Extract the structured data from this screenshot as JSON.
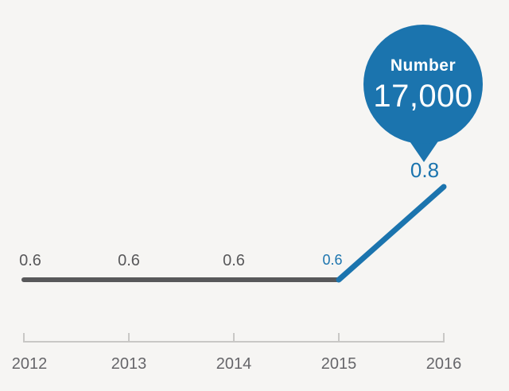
{
  "colors": {
    "background": "#f6f5f3",
    "accent_blue": "#1b74ae",
    "line_gray": "#58585a",
    "axis_gray": "#c9c8c6",
    "value_label_gray": "#58585a",
    "year_label_gray": "#66666a",
    "bubble_text": "#ffffff"
  },
  "chart_data": {
    "type": "line",
    "x": [
      2012,
      2013,
      2014,
      2015,
      2016
    ],
    "x_tick_labels": [
      "2012",
      "2013",
      "2014",
      "2015",
      "2016"
    ],
    "series": [
      {
        "name": "baseline-flat",
        "color_key": "line_gray",
        "points": [
          {
            "x": 2012,
            "y": 0.6
          },
          {
            "x": 2013,
            "y": 0.6
          },
          {
            "x": 2014,
            "y": 0.6
          },
          {
            "x": 2015,
            "y": 0.6
          }
        ]
      },
      {
        "name": "increase",
        "color_key": "accent_blue",
        "points": [
          {
            "x": 2015,
            "y": 0.6
          },
          {
            "x": 2016,
            "y": 0.8
          }
        ]
      }
    ],
    "point_labels": [
      {
        "x": 2012,
        "value": 0.6,
        "text": "0.6",
        "style": "gray"
      },
      {
        "x": 2013,
        "value": 0.6,
        "text": "0.6",
        "style": "gray"
      },
      {
        "x": 2014,
        "value": 0.6,
        "text": "0.6",
        "style": "gray"
      },
      {
        "x": 2015,
        "value": 0.6,
        "text": "0.6",
        "style": "blue-small"
      },
      {
        "x": 2016,
        "value": 0.8,
        "text": "0.8",
        "style": "blue-large"
      }
    ],
    "annotation": {
      "label": "Number",
      "value": "17,000",
      "at_x": 2016,
      "at_y": 0.8
    },
    "title": "",
    "xlabel": "",
    "ylabel": "",
    "grid": false,
    "legend": false
  }
}
